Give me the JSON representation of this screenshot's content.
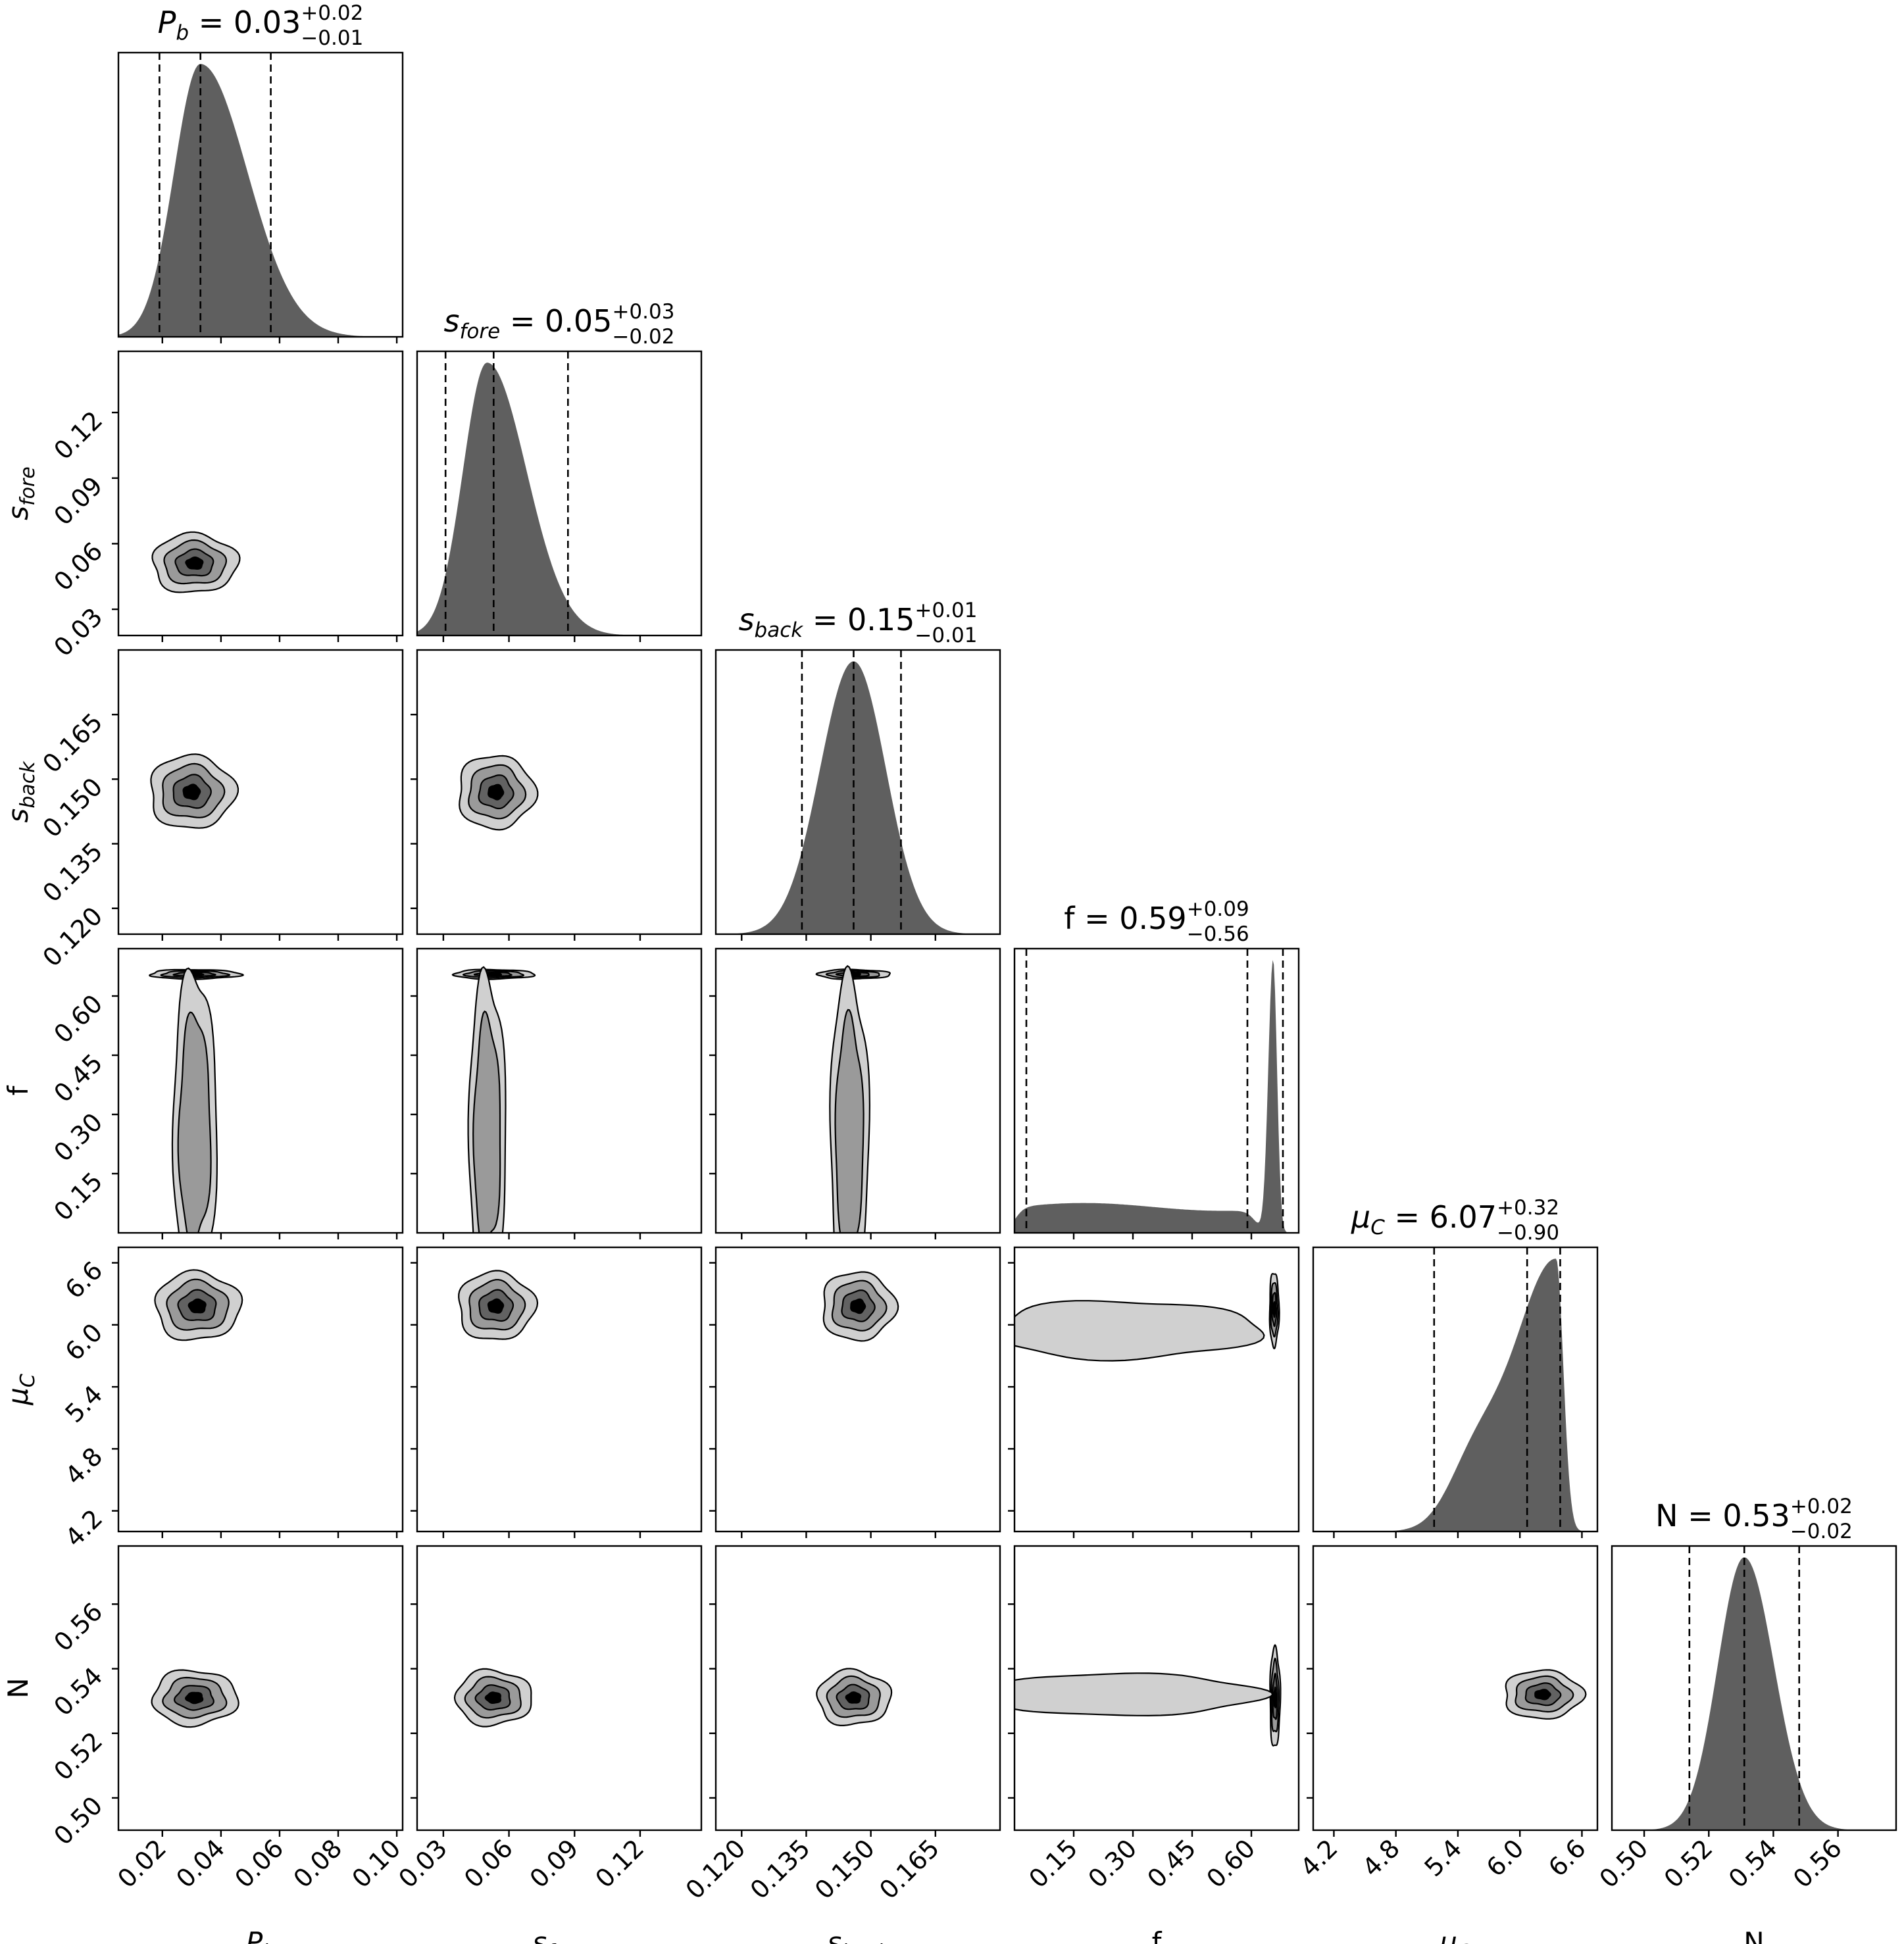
{
  "chart_data": {
    "type": "corner",
    "colors": {
      "hist": "#5f5f5f",
      "level1": "#d0d0d0",
      "level2": "#9a9a9a",
      "level3": "#626262",
      "level4": "#000000",
      "line": "#000000"
    },
    "parameters": [
      {
        "key": "Pb",
        "label_main": "P",
        "label_sub": "b",
        "label_italic": true,
        "title": {
          "main": "P",
          "sub": "b",
          "italic": true,
          "value": "0.03",
          "plus": "+0.02",
          "minus": "−0.01"
        },
        "range": [
          0.005,
          0.102
        ],
        "ticks": [
          0.02,
          0.04,
          0.06,
          0.08,
          0.1
        ],
        "tick_labels": [
          "0.02",
          "0.04",
          "0.06",
          "0.08",
          "0.10"
        ],
        "quantiles": [
          0.019,
          0.033,
          0.057
        ],
        "dist": [
          {
            "type": "skewgauss",
            "mu": 0.033,
            "sl": 0.009,
            "sr": 0.016,
            "w": 1
          }
        ]
      },
      {
        "key": "sfore",
        "label_main": "s",
        "label_sub": "fore",
        "label_italic": true,
        "title": {
          "main": "s",
          "sub": "fore",
          "italic": true,
          "value": "0.05",
          "plus": "+0.03",
          "minus": "−0.02"
        },
        "range": [
          0.018,
          0.148
        ],
        "ticks": [
          0.03,
          0.06,
          0.09,
          0.12
        ],
        "tick_labels": [
          "0.03",
          "0.06",
          "0.09",
          "0.12"
        ],
        "quantiles": [
          0.031,
          0.053,
          0.087
        ],
        "dist": [
          {
            "type": "skewgauss",
            "mu": 0.05,
            "sl": 0.011,
            "sr": 0.018,
            "w": 1
          }
        ]
      },
      {
        "key": "sback",
        "label_main": "s",
        "label_sub": "back",
        "label_italic": true,
        "title": {
          "main": "s",
          "sub": "back",
          "italic": true,
          "value": "0.15",
          "plus": "+0.01",
          "minus": "−0.01"
        },
        "range": [
          0.114,
          0.18
        ],
        "ticks": [
          0.12,
          0.135,
          0.15,
          0.165
        ],
        "tick_labels": [
          "0.120",
          "0.135",
          "0.150",
          "0.165"
        ],
        "quantiles": [
          0.134,
          0.146,
          0.157
        ],
        "dist": [
          {
            "type": "skewgauss",
            "mu": 0.146,
            "sl": 0.0078,
            "sr": 0.0075,
            "w": 1
          }
        ]
      },
      {
        "key": "f",
        "label_main": "f",
        "label_sub": "",
        "label_italic": false,
        "title": {
          "main": "f",
          "sub": "",
          "italic": false,
          "value": "0.59",
          "plus": "+0.09",
          "minus": "−0.56"
        },
        "range": [
          0.0,
          0.72
        ],
        "ticks": [
          0.15,
          0.3,
          0.45,
          0.6
        ],
        "tick_labels": [
          "0.15",
          "0.30",
          "0.45",
          "0.60"
        ],
        "quantiles": [
          0.03,
          0.59,
          0.68
        ],
        "dist": [
          {
            "type": "band",
            "lo": 0.0,
            "hi": 0.61,
            "w": 0.095
          },
          {
            "type": "skewgauss",
            "mu": 0.655,
            "sl": 0.012,
            "sr": 0.01,
            "w": 1
          }
        ]
      },
      {
        "key": "muC",
        "label_main": "μ",
        "label_sub": "C",
        "label_italic": true,
        "title": {
          "main": "μ",
          "sub": "C",
          "italic": true,
          "value": "6.07",
          "plus": "+0.32",
          "minus": "−0.90"
        },
        "range": [
          4.0,
          6.75
        ],
        "ticks": [
          4.2,
          4.8,
          5.4,
          6.0,
          6.6
        ],
        "tick_labels": [
          "4.2",
          "4.8",
          "5.4",
          "6.0",
          "6.6"
        ],
        "quantiles": [
          5.17,
          6.07,
          6.39
        ],
        "dist": [
          {
            "type": "skewgauss",
            "mu": 6.35,
            "sl": 0.42,
            "sr": 0.07,
            "w": 1
          },
          {
            "type": "skewgauss",
            "mu": 5.55,
            "sl": 0.25,
            "sr": 0.25,
            "w": 0.2
          }
        ]
      },
      {
        "key": "N",
        "label_main": "N",
        "label_sub": "",
        "label_italic": false,
        "title": {
          "main": "N",
          "sub": "",
          "italic": false,
          "value": "0.53",
          "plus": "+0.02",
          "minus": "−0.02"
        },
        "range": [
          0.49,
          0.578
        ],
        "ticks": [
          0.5,
          0.52,
          0.54,
          0.56
        ],
        "tick_labels": [
          "0.50",
          "0.52",
          "0.54",
          "0.56"
        ],
        "quantiles": [
          0.514,
          0.531,
          0.548
        ],
        "dist": [
          {
            "type": "skewgauss",
            "mu": 0.531,
            "sl": 0.0082,
            "sr": 0.0092,
            "w": 1
          }
        ]
      }
    ],
    "pairs": [
      {
        "x": "Pb",
        "y": "sfore",
        "blobs": [
          {
            "cx": 0.031,
            "cy": 0.051,
            "rx": 0.0145,
            "ry": 0.0135
          }
        ]
      },
      {
        "x": "Pb",
        "y": "sback",
        "blobs": [
          {
            "cx": 0.03,
            "cy": 0.147,
            "rx": 0.0145,
            "ry": 0.0085
          }
        ]
      },
      {
        "x": "sfore",
        "y": "sback",
        "blobs": [
          {
            "cx": 0.054,
            "cy": 0.147,
            "rx": 0.0175,
            "ry": 0.0085
          }
        ]
      },
      {
        "x": "Pb",
        "y": "f",
        "blobs": [
          {
            "cx": 0.031,
            "cy": 0.655,
            "rx": 0.0155,
            "ry": 0.012
          },
          {
            "cx": 0.031,
            "cy": 0.26,
            "rx": 0.0075,
            "ry": 0.4,
            "max": 0.85
          }
        ]
      },
      {
        "x": "sfore",
        "y": "f",
        "blobs": [
          {
            "cx": 0.053,
            "cy": 0.655,
            "rx": 0.0185,
            "ry": 0.012
          },
          {
            "cx": 0.05,
            "cy": 0.25,
            "rx": 0.0085,
            "ry": 0.4,
            "max": 0.85
          }
        ]
      },
      {
        "x": "sback",
        "y": "f",
        "blobs": [
          {
            "cx": 0.146,
            "cy": 0.655,
            "rx": 0.0085,
            "ry": 0.012
          },
          {
            "cx": 0.145,
            "cy": 0.25,
            "rx": 0.0045,
            "ry": 0.4,
            "max": 0.85
          }
        ]
      },
      {
        "x": "Pb",
        "y": "muC",
        "blobs": [
          {
            "cx": 0.032,
            "cy": 6.18,
            "rx": 0.0145,
            "ry": 0.33
          }
        ]
      },
      {
        "x": "sfore",
        "y": "muC",
        "blobs": [
          {
            "cx": 0.054,
            "cy": 6.18,
            "rx": 0.0175,
            "ry": 0.33
          }
        ]
      },
      {
        "x": "sback",
        "y": "muC",
        "blobs": [
          {
            "cx": 0.147,
            "cy": 6.18,
            "rx": 0.0085,
            "ry": 0.33
          }
        ]
      },
      {
        "x": "f",
        "y": "muC",
        "blobs": [
          {
            "cx": 0.658,
            "cy": 6.15,
            "rx": 0.012,
            "ry": 0.36
          },
          {
            "cx": 0.28,
            "cy": 5.95,
            "rx": 0.34,
            "ry": 0.28,
            "max": 0.8
          }
        ]
      },
      {
        "x": "Pb",
        "y": "N",
        "blobs": [
          {
            "cx": 0.031,
            "cy": 0.531,
            "rx": 0.0145,
            "ry": 0.0085
          }
        ]
      },
      {
        "x": "sfore",
        "y": "N",
        "blobs": [
          {
            "cx": 0.053,
            "cy": 0.531,
            "rx": 0.0175,
            "ry": 0.0085
          }
        ]
      },
      {
        "x": "sback",
        "y": "N",
        "blobs": [
          {
            "cx": 0.146,
            "cy": 0.531,
            "rx": 0.0085,
            "ry": 0.0085
          }
        ]
      },
      {
        "x": "f",
        "y": "N",
        "blobs": [
          {
            "cx": 0.66,
            "cy": 0.531,
            "rx": 0.013,
            "ry": 0.0155
          },
          {
            "cx": 0.28,
            "cy": 0.532,
            "rx": 0.34,
            "ry": 0.0065,
            "max": 0.8
          }
        ]
      },
      {
        "x": "muC",
        "y": "N",
        "blobs": [
          {
            "cx": 6.22,
            "cy": 0.532,
            "rx": 0.38,
            "ry": 0.0075
          }
        ]
      }
    ]
  }
}
